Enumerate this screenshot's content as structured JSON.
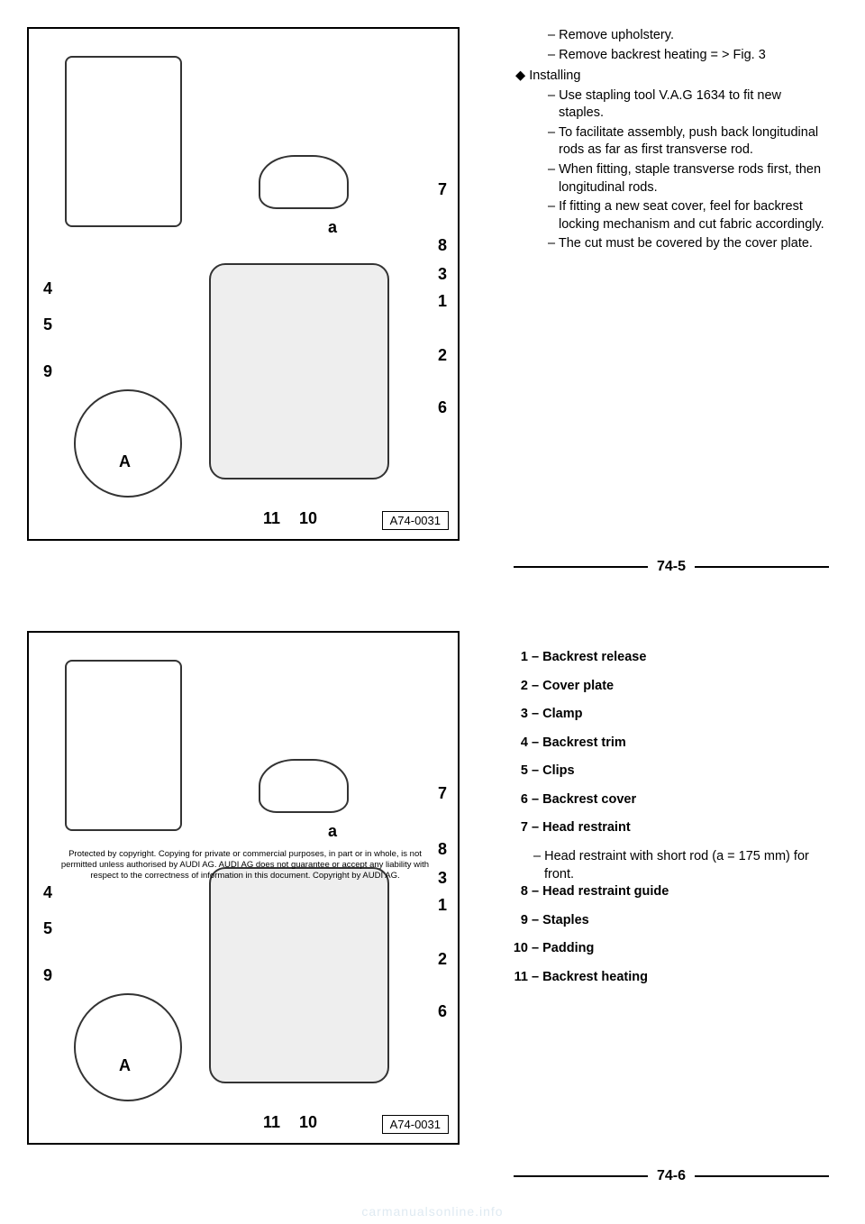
{
  "figure": {
    "id_label": "A74-0031",
    "callouts_right": [
      "7",
      "8",
      "3",
      "1",
      "2",
      "6"
    ],
    "callouts_left": [
      "4",
      "5",
      "9"
    ],
    "callouts_bottom": [
      "11",
      "10"
    ],
    "detail_label": "A",
    "dim_label": "a"
  },
  "top": {
    "lines": [
      "Remove upholstery.",
      "Remove backrest heating  = > Fig. 3"
    ],
    "installing_label": "Installing",
    "installing_items": [
      "Use stapling tool V.A.G 1634 to fit new staples.",
      "To facilitate assembly, push back longitudinal rods as far as first transverse rod.",
      "When fitting, staple transverse rods first, then longitudinal rods.",
      "If fitting a new seat cover, feel for backrest locking mecha­nism and cut fabric accord­ingly.",
      "The cut must be covered by the cover plate."
    ],
    "page_number": "74-5"
  },
  "bottom": {
    "parts": [
      {
        "n": "1",
        "label": "Backrest release"
      },
      {
        "n": "2",
        "label": "Cover plate"
      },
      {
        "n": "3",
        "label": "Clamp"
      },
      {
        "n": "4",
        "label": "Backrest trim"
      },
      {
        "n": "5",
        "label": "Clips"
      },
      {
        "n": "6",
        "label": "Backrest cover"
      },
      {
        "n": "7",
        "label": "Head restraint",
        "sub": "Head restraint with short rod (a  =  175 mm) for front."
      },
      {
        "n": "8",
        "label": "Head restraint guide"
      },
      {
        "n": "9",
        "label": "Staples"
      },
      {
        "n": "10",
        "label": "Padding"
      },
      {
        "n": "11",
        "label": "Backrest heating"
      }
    ],
    "page_number": "74-6",
    "copyright": "Protected by copyright. Copying for private or commercial purposes, in part or in whole, is not permitted unless authorised by AUDI AG. AUDI AG does not guarantee or accept any liability with respect to the correctness of information in this document. Copyright by AUDI AG."
  },
  "watermark": "carmanualsonline.info"
}
